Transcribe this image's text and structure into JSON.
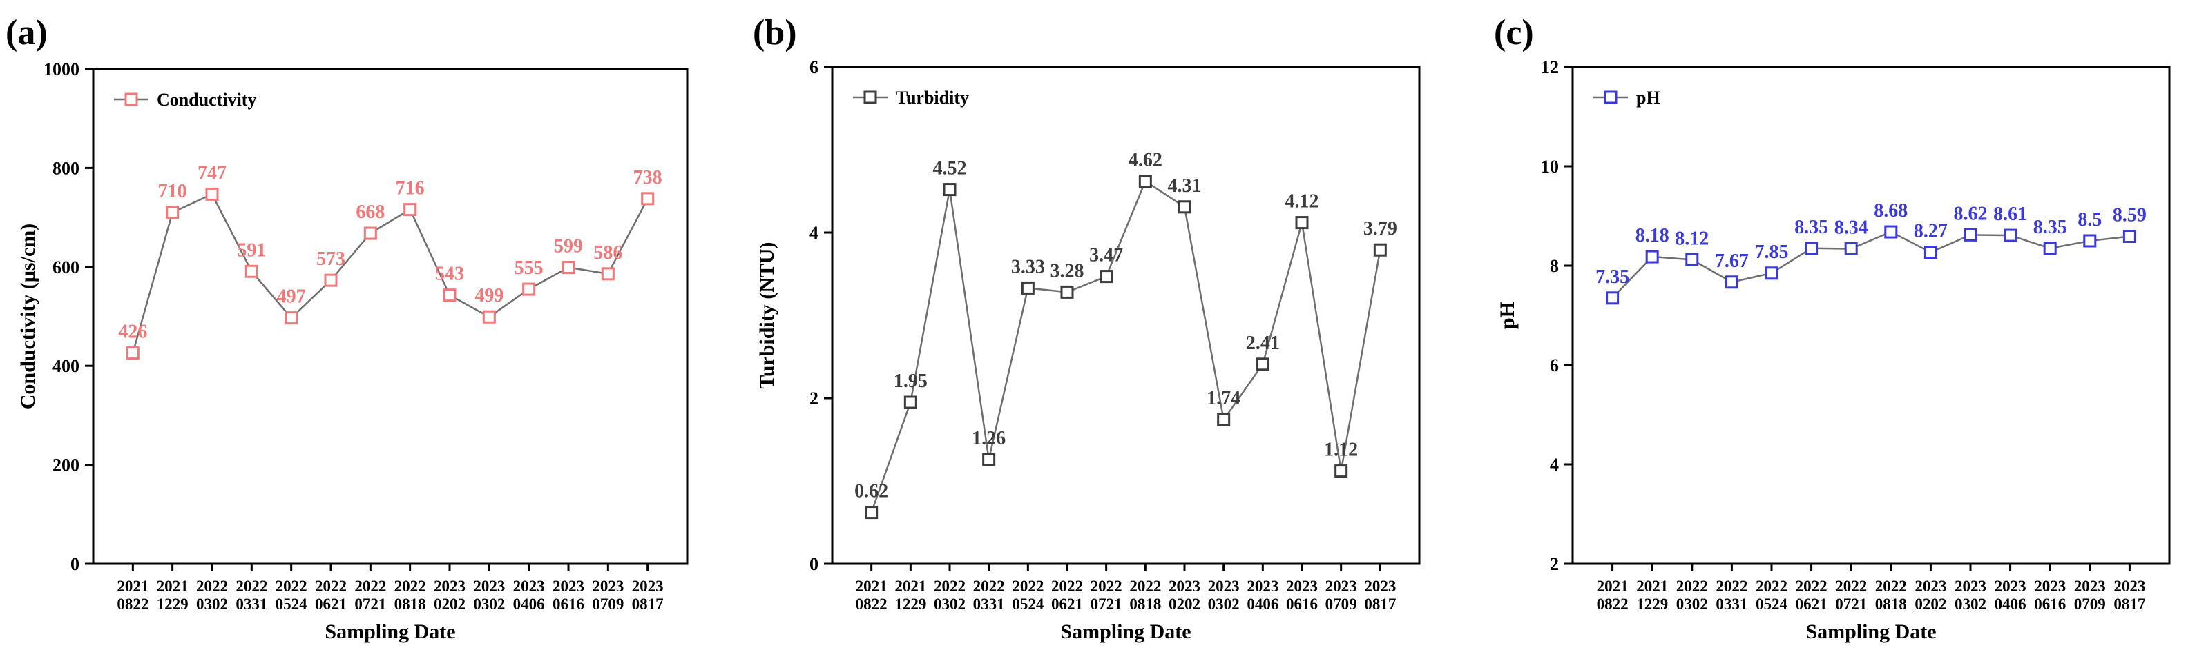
{
  "chart_data": [
    {
      "panel_label": "(a)",
      "type": "line",
      "categories": [
        [
          "2021",
          "0822"
        ],
        [
          "2021",
          "1229"
        ],
        [
          "2022",
          "0302"
        ],
        [
          "2022",
          "0331"
        ],
        [
          "2022",
          "0524"
        ],
        [
          "2022",
          "0621"
        ],
        [
          "2022",
          "0721"
        ],
        [
          "2022",
          "0818"
        ],
        [
          "2023",
          "0202"
        ],
        [
          "2023",
          "0302"
        ],
        [
          "2023",
          "0406"
        ],
        [
          "2023",
          "0616"
        ],
        [
          "2023",
          "0709"
        ],
        [
          "2023",
          "0817"
        ]
      ],
      "series": [
        {
          "name": "Conductivity",
          "values": [
            426,
            710,
            747,
            591,
            497,
            573,
            668,
            716,
            543,
            499,
            555,
            599,
            586,
            738
          ],
          "data_labels": [
            "426",
            "710",
            "747",
            "591",
            "497",
            "573",
            "668",
            "716",
            "543",
            "499",
            "555",
            "599",
            "586",
            "738"
          ],
          "color": "#f07878"
        }
      ],
      "xlabel": "Sampling Date",
      "ylabel": "Conductivity (μs/cm)",
      "ylim": [
        0,
        1000
      ],
      "yticks": [
        0,
        200,
        400,
        600,
        800,
        1000
      ],
      "ytick_labels": [
        "0",
        "200",
        "400",
        "600",
        "800",
        "1000"
      ],
      "grid": false,
      "legend": "top-left",
      "line_color": "#6e6e6e"
    },
    {
      "panel_label": "(b)",
      "type": "line",
      "categories": [
        [
          "2021",
          "0822"
        ],
        [
          "2021",
          "1229"
        ],
        [
          "2022",
          "0302"
        ],
        [
          "2022",
          "0331"
        ],
        [
          "2022",
          "0524"
        ],
        [
          "2022",
          "0621"
        ],
        [
          "2022",
          "0721"
        ],
        [
          "2022",
          "0818"
        ],
        [
          "2023",
          "0202"
        ],
        [
          "2023",
          "0302"
        ],
        [
          "2023",
          "0406"
        ],
        [
          "2023",
          "0616"
        ],
        [
          "2023",
          "0709"
        ],
        [
          "2023",
          "0817"
        ]
      ],
      "series": [
        {
          "name": "Turbidity",
          "values": [
            0.62,
            1.95,
            4.52,
            1.26,
            3.33,
            3.28,
            3.47,
            4.62,
            4.31,
            1.74,
            2.41,
            4.12,
            1.12,
            3.79
          ],
          "data_labels": [
            "0.62",
            "1.95",
            "4.52",
            "1.26",
            "3.33",
            "3.28",
            "3.47",
            "4.62",
            "4.31",
            "1.74",
            "2.41",
            "4.12",
            "1.12",
            "3.79"
          ],
          "color": "#3c3c3c"
        }
      ],
      "xlabel": "Sampling Date",
      "ylabel": "Turbidity (NTU)",
      "ylim": [
        0,
        6
      ],
      "yticks": [
        0,
        2,
        4,
        6
      ],
      "ytick_labels": [
        "0",
        "2",
        "4",
        "6"
      ],
      "grid": false,
      "legend": "top-left",
      "line_color": "#6e6e6e"
    },
    {
      "panel_label": "(c)",
      "type": "line",
      "categories": [
        [
          "2021",
          "0822"
        ],
        [
          "2021",
          "1229"
        ],
        [
          "2022",
          "0302"
        ],
        [
          "2022",
          "0331"
        ],
        [
          "2022",
          "0524"
        ],
        [
          "2022",
          "0621"
        ],
        [
          "2022",
          "0721"
        ],
        [
          "2022",
          "0818"
        ],
        [
          "2023",
          "0202"
        ],
        [
          "2023",
          "0302"
        ],
        [
          "2023",
          "0406"
        ],
        [
          "2023",
          "0616"
        ],
        [
          "2023",
          "0709"
        ],
        [
          "2023",
          "0817"
        ]
      ],
      "series": [
        {
          "name": "pH",
          "values": [
            7.35,
            8.18,
            8.12,
            7.67,
            7.85,
            8.35,
            8.34,
            8.68,
            8.27,
            8.62,
            8.61,
            8.35,
            8.5,
            8.59
          ],
          "data_labels": [
            "7.35",
            "8.18",
            "8.12",
            "7.67",
            "7.85",
            "8.35",
            "8.34",
            "8.68",
            "8.27",
            "8.62",
            "8.61",
            "8.35",
            "8.5",
            "8.59"
          ],
          "color": "#3a3adc"
        }
      ],
      "xlabel": "Sampling Date",
      "ylabel": "pH",
      "ylim": [
        2,
        12
      ],
      "yticks": [
        2,
        4,
        6,
        8,
        10,
        12
      ],
      "ytick_labels": [
        "2",
        "4",
        "6",
        "8",
        "10",
        "12"
      ],
      "grid": false,
      "legend": "top-left",
      "line_color": "#6e6e6e"
    }
  ]
}
